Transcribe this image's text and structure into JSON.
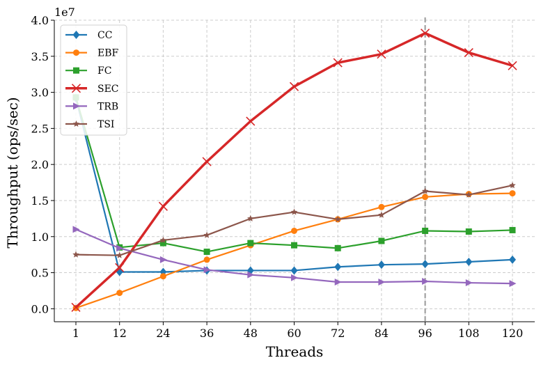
{
  "chart_data": {
    "type": "line",
    "title": "",
    "xlabel": "Threads",
    "ylabel": "Throughput (ops/sec)",
    "y_scale_label": "1e7",
    "categories": [
      "1",
      "12",
      "24",
      "36",
      "48",
      "60",
      "72",
      "84",
      "96",
      "108",
      "120"
    ],
    "ylim": [
      -0.18,
      4.0
    ],
    "yticks": [
      "0.0",
      "0.5",
      "1.0",
      "1.5",
      "2.0",
      "2.5",
      "3.0",
      "3.5",
      "4.0"
    ],
    "ytick_values": [
      0,
      0.5,
      1.0,
      1.5,
      2.0,
      2.5,
      3.0,
      3.5,
      4.0
    ],
    "y_unit_multiplier": 10000000,
    "grid": true,
    "legend_position": "top-left",
    "vline_category": "96",
    "series": [
      {
        "name": "CC",
        "color": "#1f77b4",
        "marker": "diamond",
        "values": [
          2.92,
          0.51,
          0.51,
          0.53,
          0.53,
          0.53,
          0.58,
          0.61,
          0.62,
          0.65,
          0.68
        ]
      },
      {
        "name": "EBF",
        "color": "#ff7f0e",
        "marker": "circle",
        "values": [
          0.01,
          0.22,
          0.45,
          0.68,
          0.88,
          1.08,
          1.24,
          1.41,
          1.55,
          1.59,
          1.6
        ]
      },
      {
        "name": "FC",
        "color": "#2ca02c",
        "marker": "square",
        "values": [
          2.93,
          0.85,
          0.91,
          0.79,
          0.91,
          0.88,
          0.84,
          0.94,
          1.08,
          1.07,
          1.09
        ]
      },
      {
        "name": "SEC",
        "color": "#d62728",
        "marker": "x",
        "bold": true,
        "values": [
          0.02,
          0.57,
          1.42,
          2.04,
          2.6,
          3.08,
          3.41,
          3.53,
          3.82,
          3.55,
          3.37
        ]
      },
      {
        "name": "TRB",
        "color": "#9467bd",
        "marker": "triangle-right",
        "values": [
          1.1,
          0.84,
          0.68,
          0.54,
          0.47,
          0.43,
          0.37,
          0.37,
          0.38,
          0.36,
          0.35
        ]
      },
      {
        "name": "TSI",
        "color": "#8c564b",
        "marker": "star",
        "values": [
          0.75,
          0.74,
          0.95,
          1.02,
          1.25,
          1.34,
          1.24,
          1.3,
          1.63,
          1.58,
          1.71
        ]
      }
    ]
  }
}
